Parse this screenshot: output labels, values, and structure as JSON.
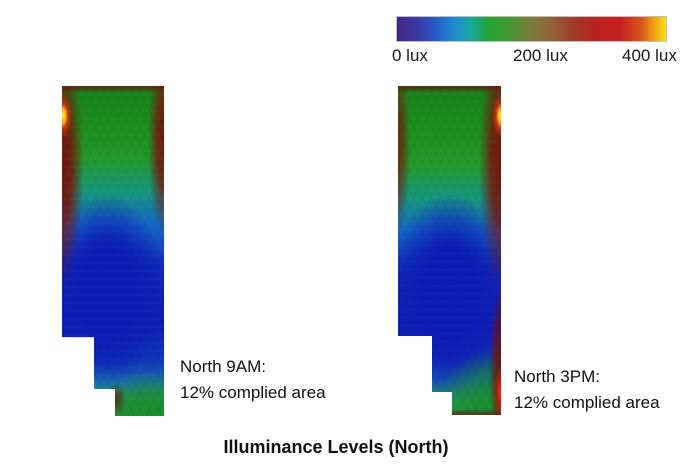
{
  "title": "Illuminance Levels (North)",
  "legend": {
    "labels": [
      "0 lux",
      "200 lux",
      "400 lux"
    ],
    "unit": "lux",
    "min": 0,
    "mid": 200,
    "max": 400,
    "gradient_colors": [
      "#45257e",
      "#2b57c8",
      "#1f8ad2",
      "#16a8a2",
      "#23a437",
      "#7c7c3c",
      "#93603a",
      "#9e3e2c",
      "#c62020",
      "#d8571c",
      "#f8e414"
    ]
  },
  "panels": [
    {
      "name": "North 9AM",
      "caption_line1": "North 9AM:",
      "caption_line2": "12% complied area",
      "complied_area_pct": 12
    },
    {
      "name": "North 3PM",
      "caption_line1": "North 3PM:",
      "caption_line2": "12% complied area",
      "complied_area_pct": 12
    }
  ],
  "chart_data": {
    "type": "heatmap",
    "title": "Illuminance Levels (North)",
    "unit": "lux",
    "colorbar": {
      "orientation": "horizontal",
      "position": "top-right",
      "range": [
        0,
        400
      ],
      "ticks": [
        0,
        200,
        400
      ],
      "tick_labels": [
        "0 lux",
        "200 lux",
        "400 lux"
      ],
      "gradient": [
        "#45257e",
        "#2b57c8",
        "#1f8ad2",
        "#16a8a2",
        "#23a437",
        "#7c7c3c",
        "#93603a",
        "#9e3e2c",
        "#c62020",
        "#d8571c",
        "#f8e414"
      ]
    },
    "panels": [
      {
        "name": "North 9AM",
        "complied_area_pct": 12,
        "shape": "L-shaped floor plate, stepped at lower left",
        "regions": [
          {
            "zone": "upper field (green)",
            "approx_lux": 150
          },
          {
            "zone": "left edge strip, upper half (dark red)",
            "approx_lux": 350
          },
          {
            "zone": "top-left edge hotspot (yellow-orange)",
            "approx_lux": 400
          },
          {
            "zone": "right edge strip, upper third (dark red)",
            "approx_lux": 330
          },
          {
            "zone": "central-lower core (deep blue)",
            "approx_lux": 20
          },
          {
            "zone": "mid transition band (cyan)",
            "approx_lux": 60
          },
          {
            "zone": "bottom-right area (green)",
            "approx_lux": 150
          },
          {
            "zone": "bottom step corner smudge (maroon)",
            "approx_lux": 300
          }
        ]
      },
      {
        "name": "North 3PM",
        "complied_area_pct": 12,
        "shape": "L-shaped floor plate, stepped at lower left",
        "regions": [
          {
            "zone": "upper field (green)",
            "approx_lux": 150
          },
          {
            "zone": "right edge strip, upper third (dark red)",
            "approx_lux": 350
          },
          {
            "zone": "top-right edge hotspot (yellow-orange)",
            "approx_lux": 400
          },
          {
            "zone": "left edge strip, upper half (dark red, faint)",
            "approx_lux": 300
          },
          {
            "zone": "central-lower core (deep blue)",
            "approx_lux": 20
          },
          {
            "zone": "mid transition band (cyan)",
            "approx_lux": 60
          },
          {
            "zone": "bottom-right area (green)",
            "approx_lux": 150
          },
          {
            "zone": "bottom-right edge streak with red hotspot",
            "approx_lux": 400
          }
        ]
      }
    ]
  }
}
